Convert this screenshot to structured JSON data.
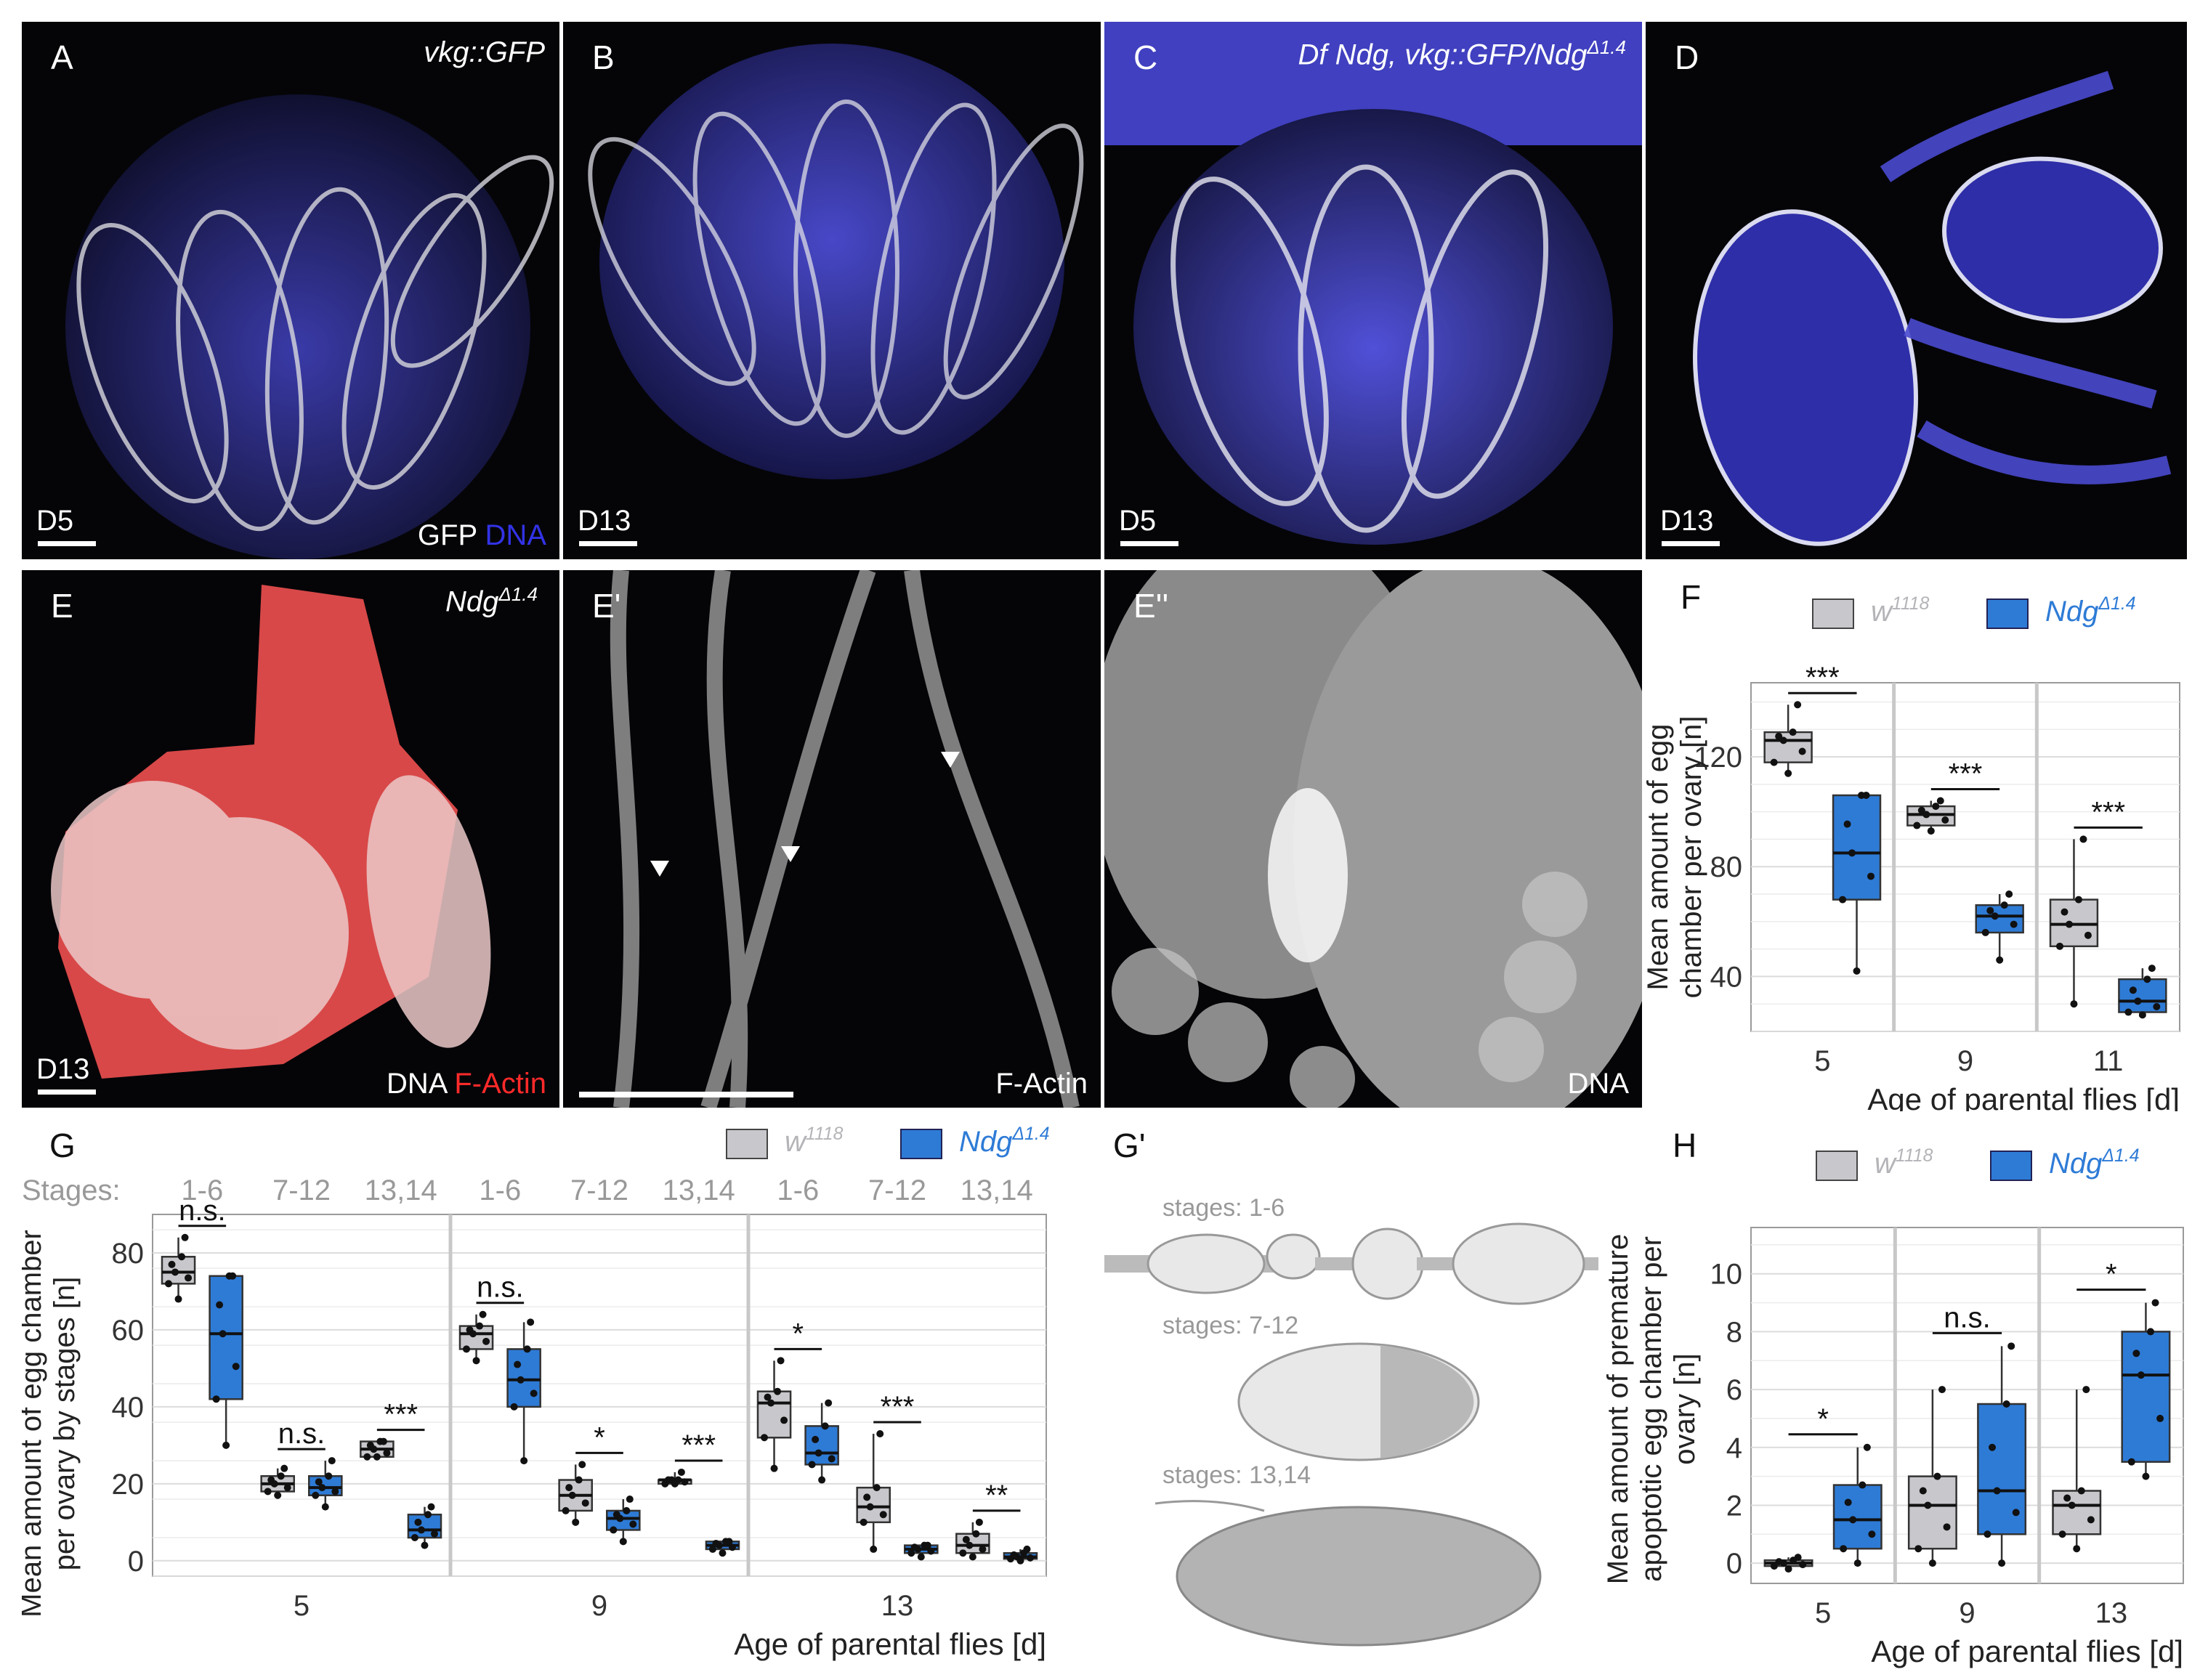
{
  "colors": {
    "wt_fill": "#c8c8cc",
    "mut_fill": "#2e7bd6",
    "wt_text": "#b4b4b8",
    "mut_text": "#2e7bd6",
    "red": "#ff2a2a",
    "blue": "#2c2ccf"
  },
  "panels": {
    "A": {
      "label": "A",
      "genotype": "vkg::GFP",
      "day": "D5",
      "legend_gfp": "GFP",
      "legend_dna": "DNA"
    },
    "B": {
      "label": "B",
      "day": "D13"
    },
    "C": {
      "label": "C",
      "genotype_pre": "Df Ndg, vkg::GFP/Ndg",
      "genotype_sup": "Δ1.4",
      "day": "D5"
    },
    "D": {
      "label": "D",
      "day": "D13"
    },
    "E": {
      "label": "E",
      "genotype_pre": "Ndg",
      "genotype_sup": "Δ1.4",
      "day": "D13",
      "legend_dna": "DNA",
      "legend_actin": "F-Actin"
    },
    "E1": {
      "label": "E'",
      "stain": "F-Actin"
    },
    "E2": {
      "label": "E''",
      "stain": "DNA"
    },
    "Gp": {
      "label": "G'",
      "stage_a": "stages: 1-6",
      "stage_b": "stages: 7-12",
      "stage_c": "stages: 13,14"
    }
  },
  "legend": {
    "wt_base": "w",
    "wt_sup": "1118",
    "mut_base": "Ndg",
    "mut_sup": "Δ1.4"
  },
  "chart_data": [
    {
      "panel": "F",
      "type": "box",
      "categories": [
        "5",
        "9",
        "11"
      ],
      "xlabel": "Age of parental flies [d]",
      "ylabel": "Mean amount of egg chamber per ovary [n]",
      "yticks": [
        40,
        80,
        120
      ],
      "ylim": [
        20,
        147
      ],
      "series": [
        {
          "name": "w1118",
          "boxes": [
            {
              "min": 114,
              "q1": 118,
              "median": 126,
              "q3": 129,
              "max": 139
            },
            {
              "min": 93,
              "q1": 95,
              "median": 99,
              "q3": 102,
              "max": 104
            },
            {
              "min": 30,
              "q1": 51,
              "median": 59,
              "q3": 68,
              "max": 90
            }
          ]
        },
        {
          "name": "NdgΔ1.4",
          "boxes": [
            {
              "min": 42,
              "q1": 68,
              "median": 85,
              "q3": 106,
              "max": 106
            },
            {
              "min": 46,
              "q1": 56,
              "median": 62,
              "q3": 66,
              "max": 70
            },
            {
              "min": 26,
              "q1": 27,
              "median": 31,
              "q3": 39,
              "max": 43
            }
          ]
        }
      ],
      "significance": [
        "***",
        "***",
        "***"
      ]
    },
    {
      "panel": "G",
      "type": "box",
      "stages_label": "Stages:",
      "stage_groups": [
        "1-6",
        "7-12",
        "13,14"
      ],
      "categories": [
        "5",
        "9",
        "13"
      ],
      "xlabel": "Age of parental flies [d]",
      "ylabel": "Mean amount of egg chamber per ovary by stages [n]",
      "yticks": [
        0,
        20,
        40,
        60,
        80
      ],
      "ylim": [
        -4,
        90
      ],
      "series": [
        {
          "name": "w1118",
          "boxes": [
            {
              "min": 68,
              "q1": 72,
              "median": 75,
              "q3": 79,
              "max": 84
            },
            {
              "min": 17,
              "q1": 18,
              "median": 20,
              "q3": 22,
              "max": 24
            },
            {
              "min": 27,
              "q1": 27,
              "median": 29,
              "q3": 31,
              "max": 31
            },
            {
              "min": 52,
              "q1": 55,
              "median": 59,
              "q3": 61,
              "max": 64
            },
            {
              "min": 10,
              "q1": 13,
              "median": 17,
              "q3": 21,
              "max": 25
            },
            {
              "min": 20,
              "q1": 20,
              "median": 21,
              "q3": 21,
              "max": 23
            },
            {
              "min": 24,
              "q1": 32,
              "median": 41,
              "q3": 44,
              "max": 52
            },
            {
              "min": 3,
              "q1": 10,
              "median": 14,
              "q3": 19,
              "max": 33
            },
            {
              "min": 1,
              "q1": 2,
              "median": 4,
              "q3": 7,
              "max": 10
            }
          ]
        },
        {
          "name": "NdgΔ1.4",
          "boxes": [
            {
              "min": 30,
              "q1": 42,
              "median": 59,
              "q3": 74,
              "max": 74
            },
            {
              "min": 14,
              "q1": 17,
              "median": 19,
              "q3": 22,
              "max": 26
            },
            {
              "min": 4,
              "q1": 6,
              "median": 8,
              "q3": 12,
              "max": 14
            },
            {
              "min": 26,
              "q1": 40,
              "median": 47,
              "q3": 55,
              "max": 62
            },
            {
              "min": 5,
              "q1": 8,
              "median": 11,
              "q3": 13,
              "max": 16
            },
            {
              "min": 2,
              "q1": 3,
              "median": 4,
              "q3": 5,
              "max": 5
            },
            {
              "min": 21,
              "q1": 25,
              "median": 28,
              "q3": 35,
              "max": 41
            },
            {
              "min": 1,
              "q1": 2,
              "median": 3,
              "q3": 4,
              "max": 4
            },
            {
              "min": 0,
              "q1": 0.5,
              "median": 1,
              "q3": 2,
              "max": 3
            }
          ]
        }
      ],
      "significance": [
        "n.s.",
        "n.s.",
        "***",
        "n.s.",
        "*",
        "***",
        "*",
        "***",
        "**"
      ]
    },
    {
      "panel": "H",
      "type": "box",
      "categories": [
        "5",
        "9",
        "13"
      ],
      "xlabel": "Age of parental flies [d]",
      "ylabel": "Mean amount of premature apoptotic egg chamber per ovary [n]",
      "yticks": [
        0,
        2,
        4,
        6,
        8,
        10
      ],
      "ylim": [
        -0.7,
        11.6
      ],
      "series": [
        {
          "name": "w1118",
          "boxes": [
            {
              "min": -0.2,
              "q1": -0.1,
              "median": 0,
              "q3": 0.1,
              "max": 0.2
            },
            {
              "min": 0,
              "q1": 0.5,
              "median": 2,
              "q3": 3,
              "max": 6
            },
            {
              "min": 0.5,
              "q1": 1,
              "median": 2,
              "q3": 2.5,
              "max": 6
            }
          ]
        },
        {
          "name": "NdgΔ1.4",
          "boxes": [
            {
              "min": 0,
              "q1": 0.5,
              "median": 1.5,
              "q3": 2.7,
              "max": 4
            },
            {
              "min": 0,
              "q1": 1,
              "median": 2.5,
              "q3": 5.5,
              "max": 7.5
            },
            {
              "min": 3,
              "q1": 3.5,
              "median": 6.5,
              "q3": 8,
              "max": 9
            }
          ]
        }
      ],
      "significance": [
        "*",
        "n.s.",
        "*"
      ]
    }
  ]
}
